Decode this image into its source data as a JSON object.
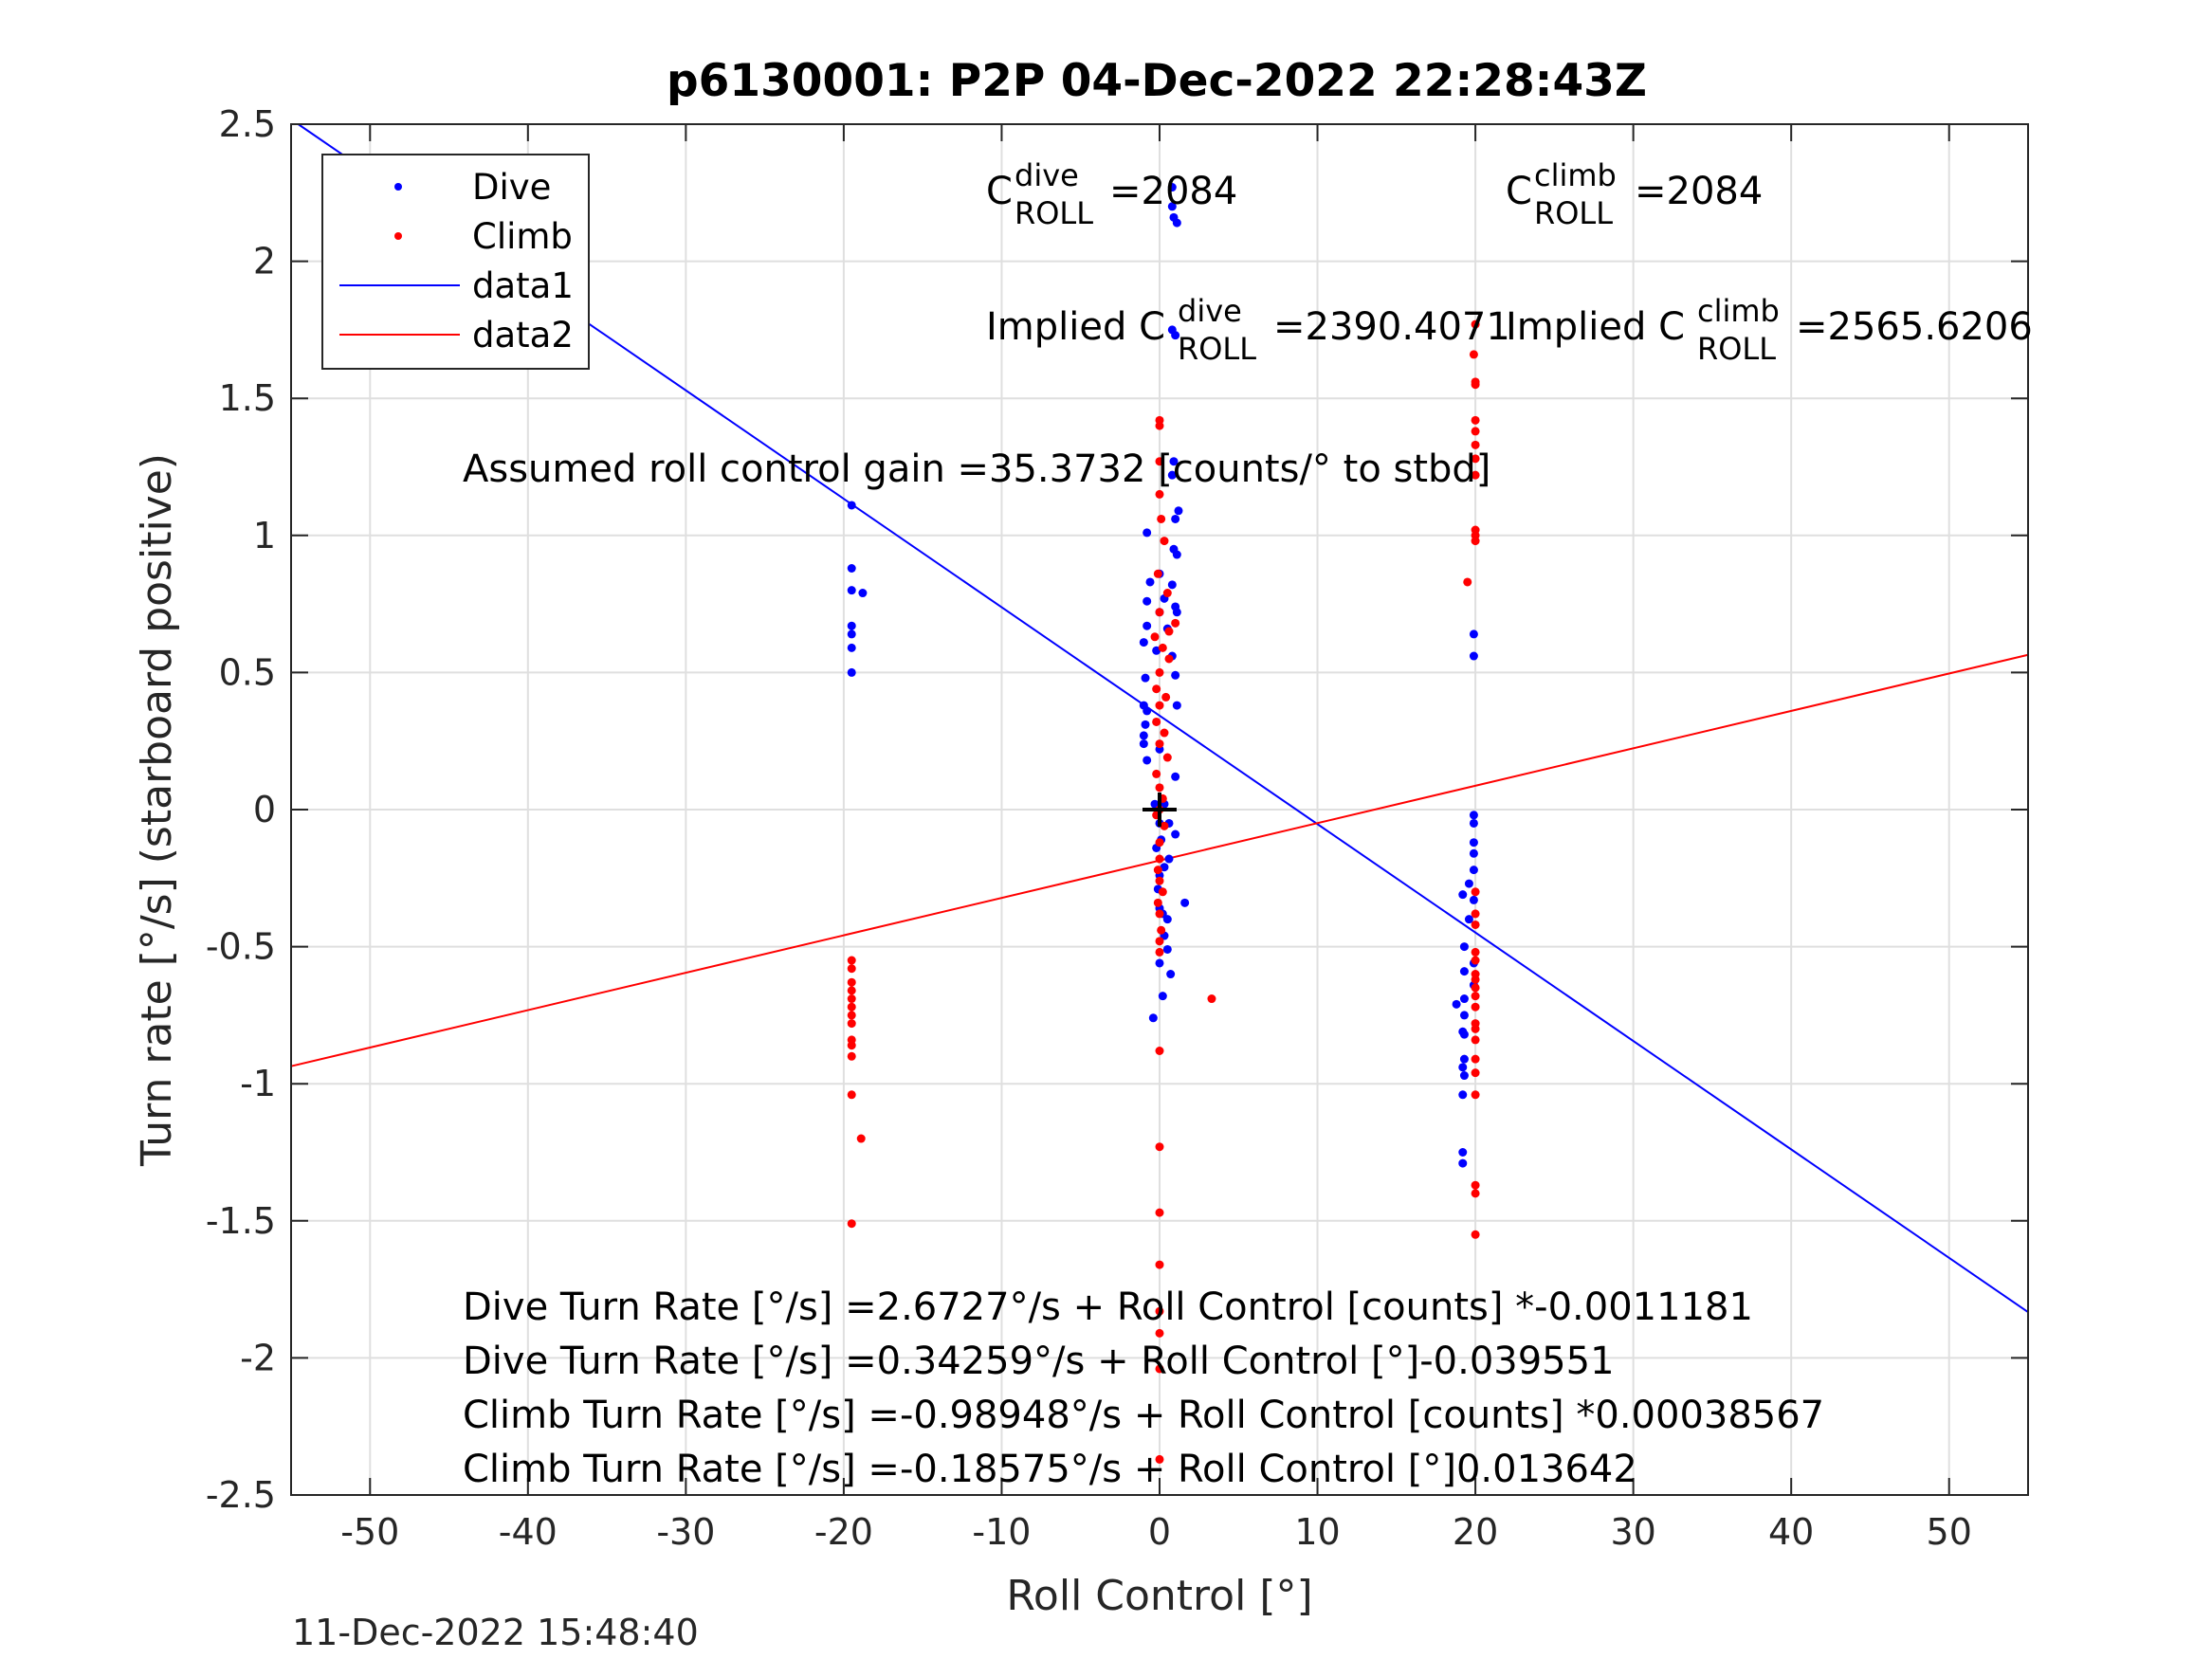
{
  "chart_data": {
    "type": "scatter",
    "title": "p6130001: P2P 04-Dec-2022 22:28:43Z",
    "xlabel": "Roll Control [°]",
    "ylabel": "Turn rate [°/s] (starboard positive)",
    "xlim": [
      -55,
      55
    ],
    "ylim": [
      -2.5,
      2.5
    ],
    "x_ticks": [
      -50,
      -40,
      -30,
      -20,
      -10,
      0,
      10,
      20,
      30,
      40,
      50
    ],
    "x_tick_labels": [
      "-50",
      "-40",
      "-30",
      "-20",
      "-10",
      "0",
      "10",
      "20",
      "30",
      "40",
      "50"
    ],
    "y_ticks": [
      2.5,
      2,
      1.5,
      1,
      0.5,
      0,
      -0.5,
      -1,
      -1.5,
      -2,
      -2.5
    ],
    "y_tick_labels": [
      "2.5",
      "2",
      "1.5",
      "1",
      "0.5",
      "0",
      "-0.5",
      "-1",
      "-1.5",
      "-2",
      "-2.5"
    ],
    "grid": true,
    "legend_position": "top-left",
    "legend": [
      "Dive",
      "Climb",
      "data1",
      "data2"
    ],
    "colors": {
      "dive": "#0000ff",
      "climb": "#ff0000",
      "marker": "#000000"
    },
    "series": [
      {
        "name": "Dive",
        "kind": "points",
        "points": [
          [
            -19.5,
            1.11
          ],
          [
            -19.5,
            0.88
          ],
          [
            -19.5,
            0.8
          ],
          [
            -18.8,
            0.79
          ],
          [
            -19.5,
            0.67
          ],
          [
            -19.5,
            0.64
          ],
          [
            -19.5,
            0.59
          ],
          [
            -19.5,
            0.5
          ],
          [
            0.8,
            2.27
          ],
          [
            0.8,
            2.2
          ],
          [
            0.9,
            2.16
          ],
          [
            1.1,
            2.14
          ],
          [
            0.8,
            1.75
          ],
          [
            1.0,
            1.73
          ],
          [
            0.9,
            1.27
          ],
          [
            0.8,
            1.22
          ],
          [
            1.2,
            1.09
          ],
          [
            1.0,
            1.06
          ],
          [
            -0.8,
            1.01
          ],
          [
            0.9,
            0.95
          ],
          [
            1.1,
            0.93
          ],
          [
            0.0,
            0.86
          ],
          [
            -0.6,
            0.83
          ],
          [
            0.8,
            0.82
          ],
          [
            -0.8,
            0.76
          ],
          [
            0.3,
            0.77
          ],
          [
            1.0,
            0.74
          ],
          [
            1.1,
            0.72
          ],
          [
            0.0,
            0.72
          ],
          [
            -0.8,
            0.67
          ],
          [
            0.5,
            0.66
          ],
          [
            -1.0,
            0.61
          ],
          [
            -0.2,
            0.58
          ],
          [
            0.8,
            0.56
          ],
          [
            -0.9,
            0.48
          ],
          [
            1.0,
            0.49
          ],
          [
            -1.0,
            0.38
          ],
          [
            -0.8,
            0.36
          ],
          [
            1.1,
            0.38
          ],
          [
            -0.9,
            0.31
          ],
          [
            -1.0,
            0.27
          ],
          [
            -1.0,
            0.24
          ],
          [
            0.0,
            0.22
          ],
          [
            -0.8,
            0.18
          ],
          [
            1.0,
            0.12
          ],
          [
            -0.3,
            0.02
          ],
          [
            0.3,
            0.02
          ],
          [
            0.0,
            -0.05
          ],
          [
            0.6,
            -0.05
          ],
          [
            1.0,
            -0.09
          ],
          [
            0.1,
            -0.11
          ],
          [
            -0.2,
            -0.14
          ],
          [
            0.6,
            -0.18
          ],
          [
            0.3,
            -0.21
          ],
          [
            0.0,
            -0.24
          ],
          [
            -0.1,
            -0.29
          ],
          [
            0.0,
            -0.36
          ],
          [
            0.2,
            -0.38
          ],
          [
            0.5,
            -0.4
          ],
          [
            0.3,
            -0.46
          ],
          [
            0.0,
            -0.56
          ],
          [
            0.7,
            -0.6
          ],
          [
            0.2,
            -0.68
          ],
          [
            -0.4,
            -0.76
          ],
          [
            0.5,
            -0.51
          ],
          [
            1.6,
            -0.34
          ],
          [
            19.9,
            -0.02
          ],
          [
            19.9,
            -0.05
          ],
          [
            19.9,
            -0.12
          ],
          [
            19.9,
            -0.16
          ],
          [
            19.9,
            -0.22
          ],
          [
            19.6,
            -0.27
          ],
          [
            19.2,
            -0.31
          ],
          [
            19.9,
            -0.33
          ],
          [
            19.6,
            -0.4
          ],
          [
            19.3,
            -0.5
          ],
          [
            19.9,
            -0.56
          ],
          [
            19.3,
            -0.59
          ],
          [
            19.9,
            -0.64
          ],
          [
            19.3,
            -0.69
          ],
          [
            18.8,
            -0.71
          ],
          [
            19.3,
            -0.75
          ],
          [
            19.2,
            -0.81
          ],
          [
            19.3,
            -0.82
          ],
          [
            19.3,
            -0.91
          ],
          [
            19.2,
            -0.94
          ],
          [
            19.3,
            -0.97
          ],
          [
            19.2,
            -1.04
          ],
          [
            19.2,
            -1.25
          ],
          [
            19.2,
            -1.29
          ],
          [
            19.9,
            0.64
          ],
          [
            19.9,
            0.56
          ]
        ]
      },
      {
        "name": "Climb",
        "kind": "points",
        "points": [
          [
            20.0,
            1.77
          ],
          [
            19.9,
            1.66
          ],
          [
            20.0,
            1.56
          ],
          [
            20.0,
            1.55
          ],
          [
            20.0,
            1.42
          ],
          [
            20.0,
            1.38
          ],
          [
            20.0,
            1.33
          ],
          [
            20.0,
            1.28
          ],
          [
            20.0,
            1.22
          ],
          [
            20.0,
            1.02
          ],
          [
            20.0,
            1.0
          ],
          [
            20.0,
            0.98
          ],
          [
            19.5,
            0.83
          ],
          [
            20.0,
            -0.3
          ],
          [
            20.0,
            -0.38
          ],
          [
            20.0,
            -0.42
          ],
          [
            20.0,
            -0.52
          ],
          [
            20.0,
            -0.55
          ],
          [
            20.0,
            -0.6
          ],
          [
            20.0,
            -0.62
          ],
          [
            20.0,
            -0.65
          ],
          [
            20.0,
            -0.68
          ],
          [
            20.0,
            -0.72
          ],
          [
            20.0,
            -0.78
          ],
          [
            20.0,
            -0.8
          ],
          [
            20.0,
            -0.84
          ],
          [
            20.0,
            -0.91
          ],
          [
            20.0,
            -0.96
          ],
          [
            20.0,
            -1.04
          ],
          [
            20.0,
            -1.37
          ],
          [
            20.0,
            -1.4
          ],
          [
            20.0,
            -1.55
          ],
          [
            0.0,
            1.42
          ],
          [
            0.0,
            1.4
          ],
          [
            0.0,
            1.27
          ],
          [
            0.0,
            1.15
          ],
          [
            0.1,
            1.06
          ],
          [
            0.3,
            0.98
          ],
          [
            -0.1,
            0.86
          ],
          [
            0.5,
            0.79
          ],
          [
            0.0,
            0.72
          ],
          [
            1.0,
            0.68
          ],
          [
            0.6,
            0.65
          ],
          [
            -0.3,
            0.63
          ],
          [
            0.2,
            0.59
          ],
          [
            0.6,
            0.55
          ],
          [
            0.0,
            0.5
          ],
          [
            -0.2,
            0.44
          ],
          [
            0.4,
            0.41
          ],
          [
            0.0,
            0.38
          ],
          [
            -0.2,
            0.32
          ],
          [
            0.3,
            0.28
          ],
          [
            0.0,
            0.24
          ],
          [
            0.5,
            0.19
          ],
          [
            -0.2,
            0.13
          ],
          [
            0.0,
            0.08
          ],
          [
            0.2,
            0.04
          ],
          [
            0.0,
            0.0
          ],
          [
            -0.2,
            -0.02
          ],
          [
            0.3,
            -0.06
          ],
          [
            0.0,
            -0.12
          ],
          [
            0.0,
            -0.18
          ],
          [
            -0.1,
            -0.22
          ],
          [
            0.0,
            -0.26
          ],
          [
            0.2,
            -0.3
          ],
          [
            -0.1,
            -0.34
          ],
          [
            0.0,
            -0.38
          ],
          [
            0.1,
            -0.44
          ],
          [
            0.0,
            -0.48
          ],
          [
            0.0,
            -0.52
          ],
          [
            0.0,
            -0.88
          ],
          [
            0.0,
            -1.23
          ],
          [
            0.0,
            -1.47
          ],
          [
            0.0,
            -1.66
          ],
          [
            0.0,
            -1.83
          ],
          [
            0.0,
            -1.91
          ],
          [
            0.0,
            -2.04
          ],
          [
            0.0,
            -2.37
          ],
          [
            3.3,
            -0.69
          ],
          [
            -19.5,
            -0.55
          ],
          [
            -19.5,
            -0.58
          ],
          [
            -19.5,
            -0.63
          ],
          [
            -19.5,
            -0.66
          ],
          [
            -19.5,
            -0.69
          ],
          [
            -19.5,
            -0.72
          ],
          [
            -19.5,
            -0.75
          ],
          [
            -19.5,
            -0.78
          ],
          [
            -19.5,
            -0.84
          ],
          [
            -19.5,
            -0.86
          ],
          [
            -19.5,
            -0.9
          ],
          [
            -19.5,
            -1.04
          ],
          [
            -18.9,
            -1.2
          ],
          [
            -19.5,
            -1.51
          ]
        ]
      },
      {
        "name": "data1",
        "kind": "line",
        "intercept": 0.34259,
        "slope": -0.039551,
        "x": [
          -55,
          55
        ]
      },
      {
        "name": "data2",
        "kind": "line",
        "intercept": -0.18575,
        "slope": 0.013642,
        "x": [
          -55,
          55
        ]
      }
    ],
    "origin_marker": [
      0,
      0
    ]
  },
  "annotations": {
    "c_dive_base": "C",
    "c_dive_sup": "dive",
    "c_dive_sub": "ROLL",
    "c_dive_value": "=2084",
    "c_climb_base": "C",
    "c_climb_sup": "climb",
    "c_climb_sub": "ROLL",
    "c_climb_value": "=2084",
    "implied_dive_prefix": "Implied C",
    "implied_dive_sup": "dive",
    "implied_dive_sub": "ROLL",
    "implied_dive_value": "=2390.4071",
    "implied_climb_prefix": "Implied C",
    "implied_climb_sup": "climb",
    "implied_climb_sub": "ROLL",
    "implied_climb_value": "=2565.6206",
    "gain": "Assumed roll control gain =35.3732 [counts/° to stbd]",
    "eq1": "Dive Turn Rate [°/s] =2.6727°/s + Roll Control [counts] *-0.0011181",
    "eq2": "Dive Turn Rate [°/s] =0.34259°/s + Roll Control [°]-0.039551",
    "eq3": "Climb Turn Rate [°/s] =-0.98948°/s + Roll Control [counts] *0.00038567",
    "eq4": "Climb Turn Rate [°/s] =-0.18575°/s + Roll Control [°]0.013642"
  },
  "timestamp": "11-Dec-2022 15:48:40"
}
